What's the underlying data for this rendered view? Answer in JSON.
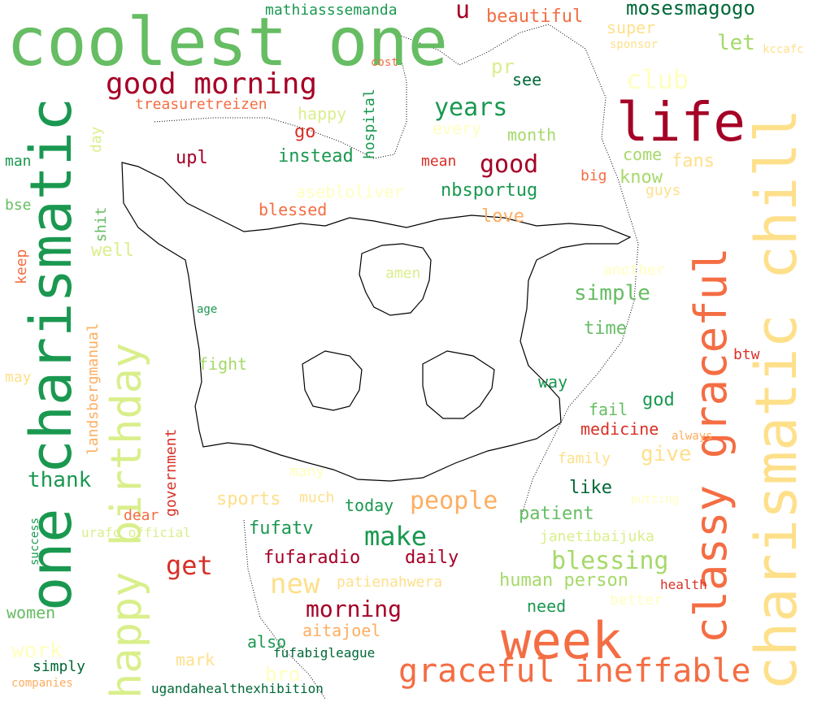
{
  "colors": {
    "deep_red": "#a50026",
    "red": "#d73027",
    "orange": "#f46d43",
    "light_orange": "#fdae61",
    "pale_yellow": "#fee08b",
    "cream": "#ffffbf",
    "pale_green": "#d9ef8b",
    "light_green": "#a6d96a",
    "green": "#66bd63",
    "mid_green": "#1a9850",
    "dark_green": "#006837"
  },
  "words": [
    {
      "text": "coolest one",
      "size": 82,
      "color": "#66bd63",
      "orient": "h"
    },
    {
      "text": "one charismatic",
      "size": 70,
      "color": "#1a9850",
      "orient": "v"
    },
    {
      "text": "happy birthday",
      "size": 52,
      "color": "#d9ef8b",
      "orient": "v"
    },
    {
      "text": "charismatic chill",
      "size": 70,
      "color": "#fee08b",
      "orient": "v"
    },
    {
      "text": "classy graceful",
      "size": 54,
      "color": "#f46d43",
      "orient": "v"
    },
    {
      "text": "life",
      "size": 66,
      "color": "#a50026",
      "orient": "h"
    },
    {
      "text": "week",
      "size": 62,
      "color": "#f46d43",
      "orient": "h"
    },
    {
      "text": "graceful ineffable",
      "size": 40,
      "color": "#f46d43",
      "orient": "h"
    },
    {
      "text": "good morning",
      "size": 36,
      "color": "#a50026",
      "orient": "h"
    },
    {
      "text": "mosesmagogo",
      "size": 24,
      "color": "#006837",
      "orient": "h"
    },
    {
      "text": "mathiasssemanda",
      "size": 18,
      "color": "#1a9850",
      "orient": "h"
    },
    {
      "text": "u",
      "size": 30,
      "color": "#a50026",
      "orient": "h"
    },
    {
      "text": "beautiful",
      "size": 22,
      "color": "#f46d43",
      "orient": "h"
    },
    {
      "text": "super",
      "size": 20,
      "color": "#fee08b",
      "orient": "h"
    },
    {
      "text": "sponsor",
      "size": 14,
      "color": "#fee08b",
      "orient": "h"
    },
    {
      "text": "let",
      "size": 26,
      "color": "#a6d96a",
      "orient": "h"
    },
    {
      "text": "kccafc",
      "size": 14,
      "color": "#fee08b",
      "orient": "h"
    },
    {
      "text": "cost",
      "size": 14,
      "color": "#f46d43",
      "orient": "h"
    },
    {
      "text": "pr",
      "size": 24,
      "color": "#d9ef8b",
      "orient": "h"
    },
    {
      "text": "see",
      "size": 20,
      "color": "#006837",
      "orient": "h"
    },
    {
      "text": "club",
      "size": 32,
      "color": "#ffffbf",
      "orient": "h"
    },
    {
      "text": "treasuretreizen",
      "size": 18,
      "color": "#f46d43",
      "orient": "h"
    },
    {
      "text": "hospital",
      "size": 18,
      "color": "#1a9850",
      "orient": "v"
    },
    {
      "text": "years",
      "size": 30,
      "color": "#1a9850",
      "orient": "h"
    },
    {
      "text": "happy",
      "size": 20,
      "color": "#d9ef8b",
      "orient": "h"
    },
    {
      "text": "every",
      "size": 20,
      "color": "#ffffbf",
      "orient": "h"
    },
    {
      "text": "month",
      "size": 20,
      "color": "#a6d96a",
      "orient": "h"
    },
    {
      "text": "go",
      "size": 22,
      "color": "#d73027",
      "orient": "h"
    },
    {
      "text": "day",
      "size": 18,
      "color": "#d9ef8b",
      "orient": "v"
    },
    {
      "text": "upl",
      "size": 22,
      "color": "#a50026",
      "orient": "h"
    },
    {
      "text": "instead",
      "size": 22,
      "color": "#1a9850",
      "orient": "h"
    },
    {
      "text": "mean",
      "size": 18,
      "color": "#d73027",
      "orient": "h"
    },
    {
      "text": "good",
      "size": 30,
      "color": "#a50026",
      "orient": "h"
    },
    {
      "text": "come",
      "size": 20,
      "color": "#a6d96a",
      "orient": "h"
    },
    {
      "text": "fans",
      "size": 22,
      "color": "#fee08b",
      "orient": "h"
    },
    {
      "text": "man",
      "size": 18,
      "color": "#1a9850",
      "orient": "h"
    },
    {
      "text": "big",
      "size": 18,
      "color": "#f46d43",
      "orient": "h"
    },
    {
      "text": "know",
      "size": 22,
      "color": "#a6d96a",
      "orient": "h"
    },
    {
      "text": "guys",
      "size": 18,
      "color": "#fee08b",
      "orient": "h"
    },
    {
      "text": "asebloliver",
      "size": 20,
      "color": "#ffffbf",
      "orient": "h"
    },
    {
      "text": "nbsportug",
      "size": 22,
      "color": "#1a9850",
      "orient": "h"
    },
    {
      "text": "bse",
      "size": 18,
      "color": "#66bd63",
      "orient": "h"
    },
    {
      "text": "blessed",
      "size": 20,
      "color": "#f46d43",
      "orient": "h"
    },
    {
      "text": "love",
      "size": 22,
      "color": "#fdae61",
      "orient": "h"
    },
    {
      "text": "shit",
      "size": 18,
      "color": "#66bd63",
      "orient": "v"
    },
    {
      "text": "well",
      "size": 22,
      "color": "#d9ef8b",
      "orient": "h"
    },
    {
      "text": "keep",
      "size": 18,
      "color": "#f46d43",
      "orient": "v"
    },
    {
      "text": "amen",
      "size": 18,
      "color": "#d9ef8b",
      "orient": "h"
    },
    {
      "text": "another",
      "size": 18,
      "color": "#ffffbf",
      "orient": "h"
    },
    {
      "text": "simple",
      "size": 26,
      "color": "#66bd63",
      "orient": "h"
    },
    {
      "text": "landsbergmanual",
      "size": 18,
      "color": "#fdae61",
      "orient": "v"
    },
    {
      "text": "age",
      "size": 14,
      "color": "#1a9850",
      "orient": "h"
    },
    {
      "text": "time",
      "size": 22,
      "color": "#66bd63",
      "orient": "h"
    },
    {
      "text": "fight",
      "size": 20,
      "color": "#a6d96a",
      "orient": "h"
    },
    {
      "text": "btw",
      "size": 18,
      "color": "#d73027",
      "orient": "h"
    },
    {
      "text": "may",
      "size": 18,
      "color": "#fee08b",
      "orient": "h"
    },
    {
      "text": "way",
      "size": 20,
      "color": "#1a9850",
      "orient": "h"
    },
    {
      "text": "god",
      "size": 22,
      "color": "#1a9850",
      "orient": "h"
    },
    {
      "text": "fail",
      "size": 20,
      "color": "#66bd63",
      "orient": "h"
    },
    {
      "text": "government",
      "size": 18,
      "color": "#d73027",
      "orient": "v"
    },
    {
      "text": "medicine",
      "size": 20,
      "color": "#d73027",
      "orient": "h"
    },
    {
      "text": "always",
      "size": 14,
      "color": "#fdae61",
      "orient": "h"
    },
    {
      "text": "family",
      "size": 18,
      "color": "#fee08b",
      "orient": "h"
    },
    {
      "text": "give",
      "size": 26,
      "color": "#fee08b",
      "orient": "h"
    },
    {
      "text": "many",
      "size": 18,
      "color": "#ffffbf",
      "orient": "h"
    },
    {
      "text": "thank",
      "size": 26,
      "color": "#1a9850",
      "orient": "h"
    },
    {
      "text": "like",
      "size": 22,
      "color": "#006837",
      "orient": "h"
    },
    {
      "text": "people",
      "size": 30,
      "color": "#fdae61",
      "orient": "h"
    },
    {
      "text": "sports",
      "size": 22,
      "color": "#fee08b",
      "orient": "h"
    },
    {
      "text": "much",
      "size": 18,
      "color": "#fee08b",
      "orient": "h"
    },
    {
      "text": "today",
      "size": 20,
      "color": "#1a9850",
      "orient": "h"
    },
    {
      "text": "putting",
      "size": 14,
      "color": "#ffffbf",
      "orient": "h"
    },
    {
      "text": "patient",
      "size": 22,
      "color": "#66bd63",
      "orient": "h"
    },
    {
      "text": "dear",
      "size": 18,
      "color": "#f46d43",
      "orient": "h"
    },
    {
      "text": "success",
      "size": 14,
      "color": "#1a9850",
      "orient": "v"
    },
    {
      "text": "urafc_official",
      "size": 16,
      "color": "#d9ef8b",
      "orient": "h"
    },
    {
      "text": "fufatv",
      "size": 22,
      "color": "#1a9850",
      "orient": "h"
    },
    {
      "text": "janetibaijuka",
      "size": 18,
      "color": "#d9ef8b",
      "orient": "h"
    },
    {
      "text": "make",
      "size": 32,
      "color": "#1a9850",
      "orient": "h"
    },
    {
      "text": "get",
      "size": 32,
      "color": "#d73027",
      "orient": "h"
    },
    {
      "text": "fufaradio",
      "size": 22,
      "color": "#a50026",
      "orient": "h"
    },
    {
      "text": "daily",
      "size": 22,
      "color": "#a50026",
      "orient": "h"
    },
    {
      "text": "blessing",
      "size": 30,
      "color": "#a6d96a",
      "orient": "h"
    },
    {
      "text": "new",
      "size": 34,
      "color": "#fee08b",
      "orient": "h"
    },
    {
      "text": "patienahwera",
      "size": 18,
      "color": "#fee08b",
      "orient": "h"
    },
    {
      "text": "human person",
      "size": 22,
      "color": "#a6d96a",
      "orient": "h"
    },
    {
      "text": "health",
      "size": 16,
      "color": "#d73027",
      "orient": "h"
    },
    {
      "text": "women",
      "size": 20,
      "color": "#66bd63",
      "orient": "h"
    },
    {
      "text": "morning",
      "size": 28,
      "color": "#a50026",
      "orient": "h"
    },
    {
      "text": "need",
      "size": 20,
      "color": "#1a9850",
      "orient": "h"
    },
    {
      "text": "better",
      "size": 18,
      "color": "#ffffbf",
      "orient": "h"
    },
    {
      "text": "aitajoel",
      "size": 20,
      "color": "#fdae61",
      "orient": "h"
    },
    {
      "text": "work",
      "size": 26,
      "color": "#ffffbf",
      "orient": "h"
    },
    {
      "text": "also",
      "size": 20,
      "color": "#1a9850",
      "orient": "h"
    },
    {
      "text": "fufabigleague",
      "size": 16,
      "color": "#006837",
      "orient": "h"
    },
    {
      "text": "mark",
      "size": 20,
      "color": "#fee08b",
      "orient": "h"
    },
    {
      "text": "simply",
      "size": 18,
      "color": "#006837",
      "orient": "h"
    },
    {
      "text": "bro",
      "size": 24,
      "color": "#ffffbf",
      "orient": "h"
    },
    {
      "text": "companies",
      "size": 14,
      "color": "#fdae61",
      "orient": "h"
    },
    {
      "text": "ugandahealthexhibition",
      "size": 16,
      "color": "#006837",
      "orient": "h"
    }
  ]
}
